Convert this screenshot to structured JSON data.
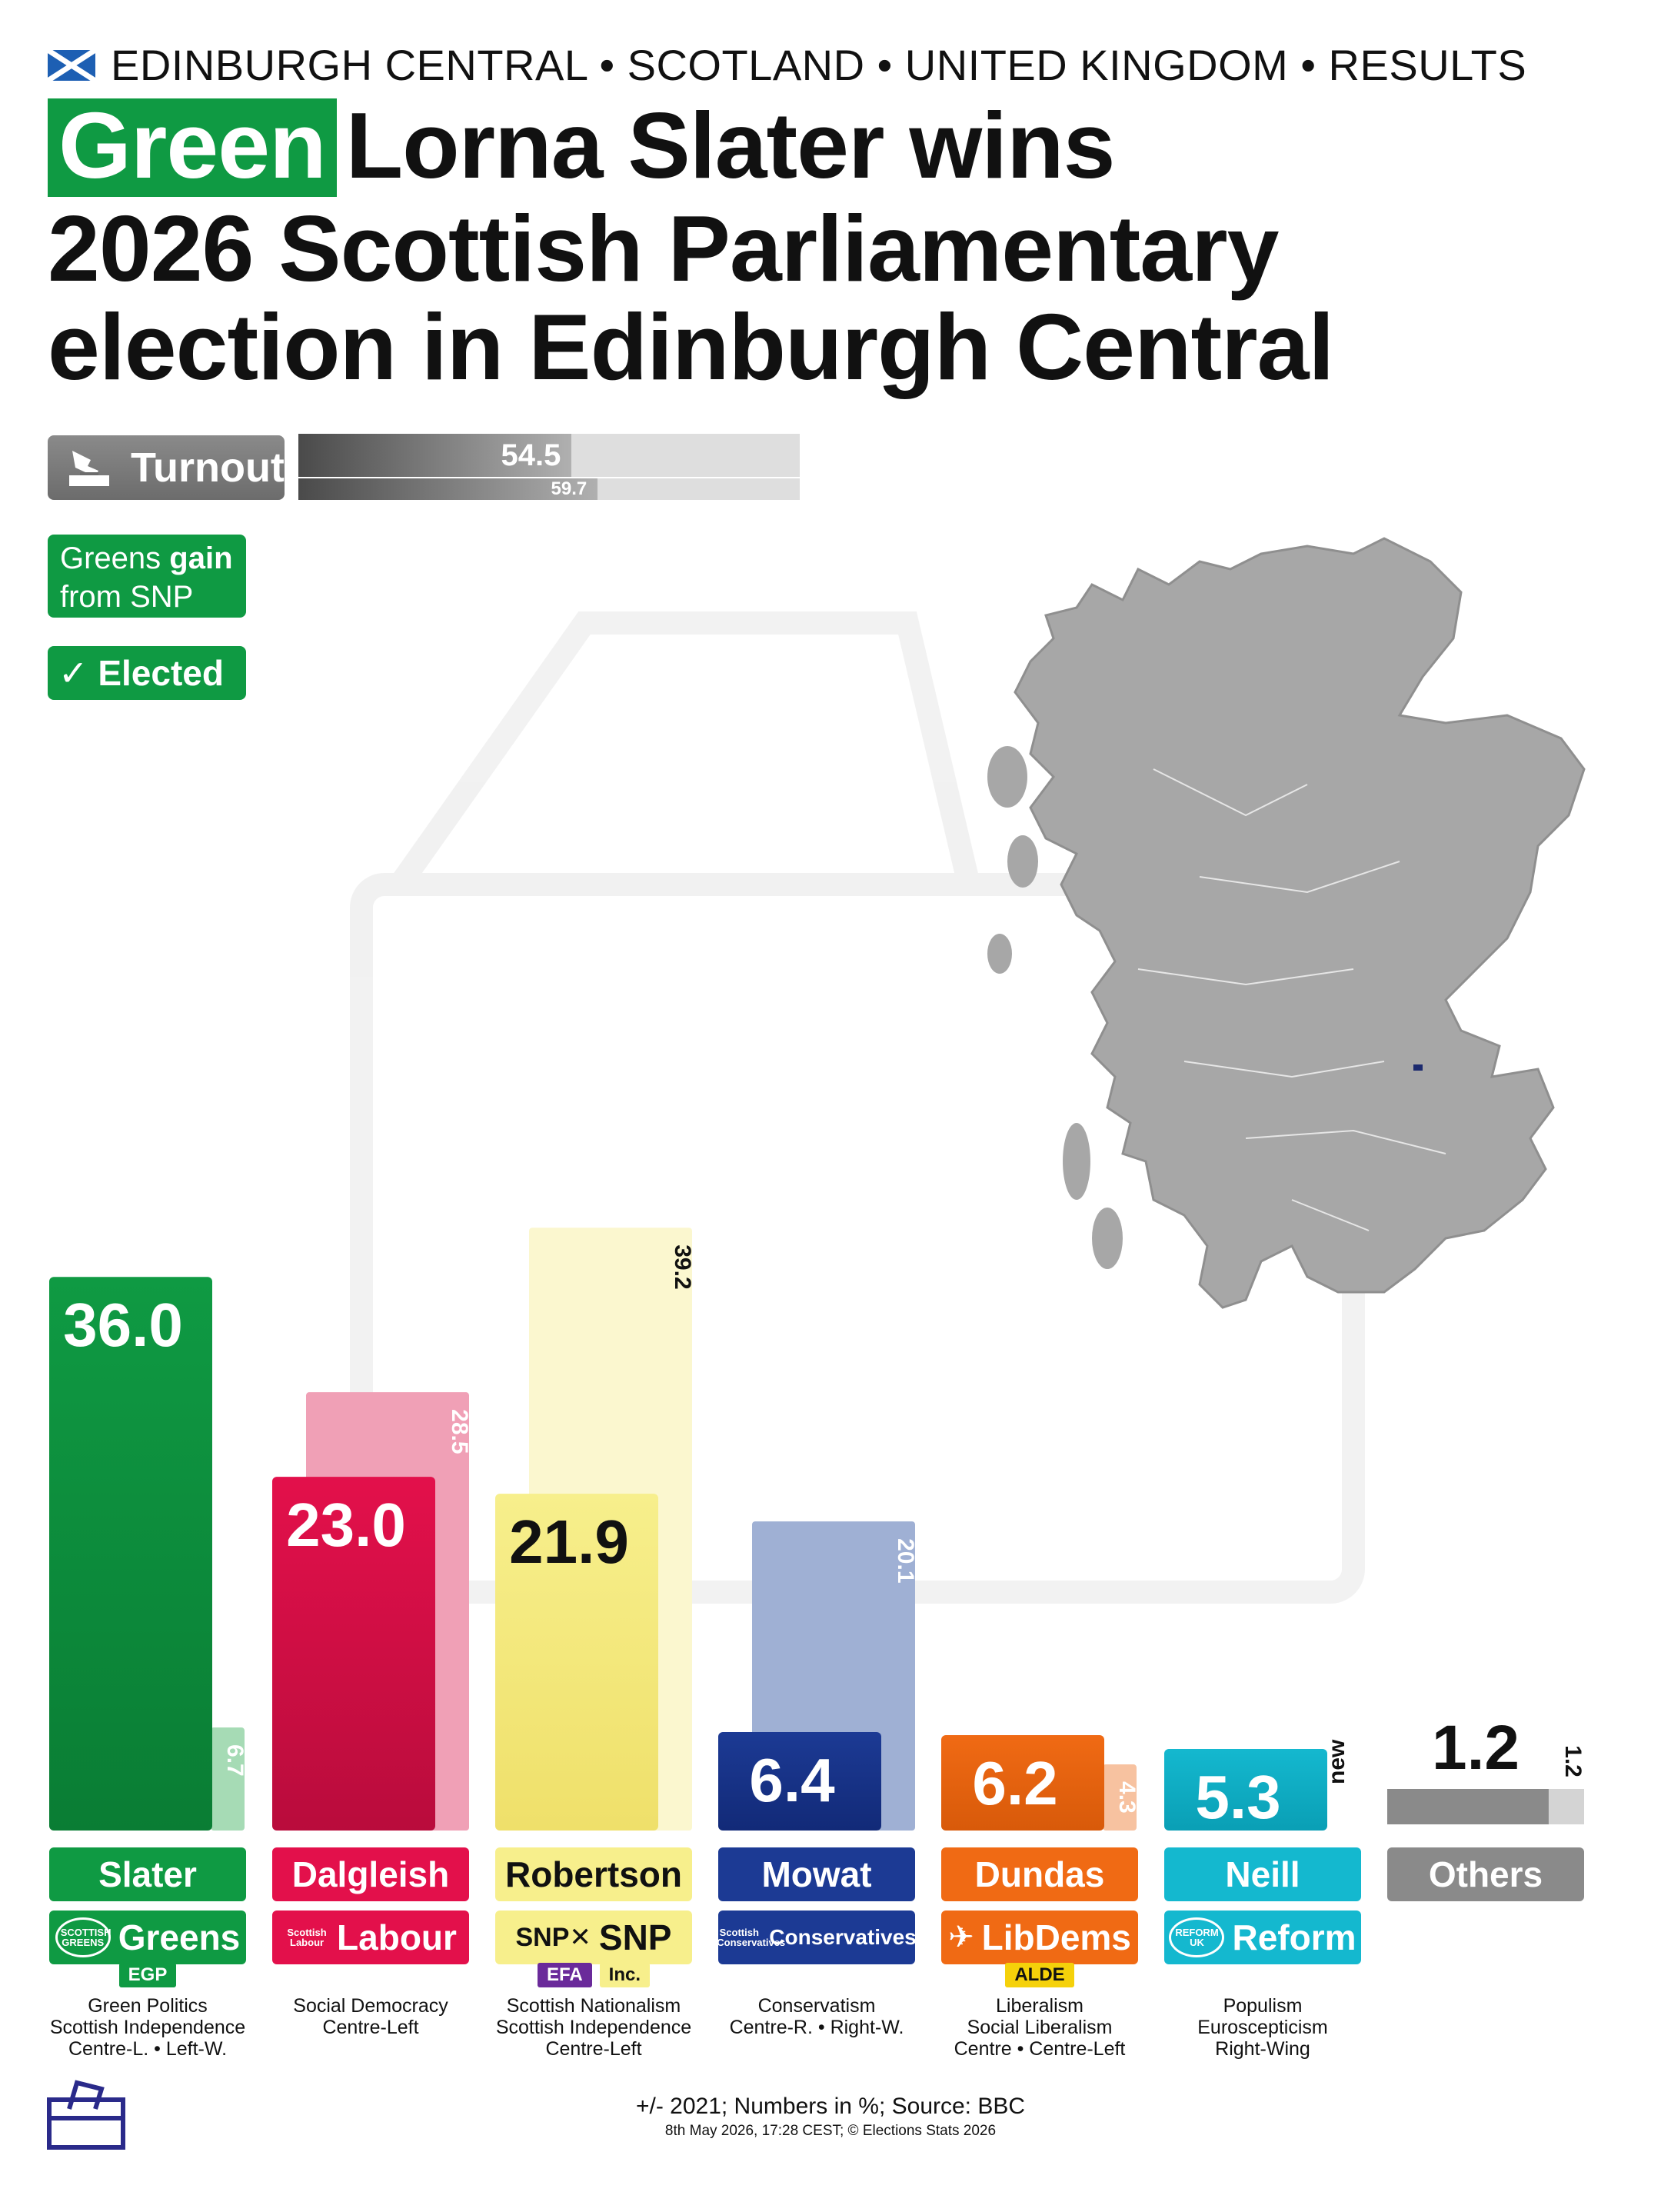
{
  "header": {
    "location": "EDINBURGH CENTRAL • SCOTLAND • UNITED KINGDOM • RESULTS",
    "flag_icon": "scotland-flag-icon"
  },
  "title": {
    "party_chip": "Green",
    "line1": "Lorna Slater wins",
    "line2": "2026 Scottish Parliamentary",
    "line3": "election in Edinburgh Central"
  },
  "turnout": {
    "label": "Turnout",
    "icon": "ballot-hand-icon",
    "current": "54.5",
    "previous": "59.7",
    "current_value": 54.5,
    "previous_value": 59.7
  },
  "badges": {
    "gain_line1_a": "Greens",
    "gain_line1_b": "gain",
    "gain_line2": "from SNP",
    "elected": "✓ Elected"
  },
  "chart_data": {
    "type": "bar",
    "unit": "%",
    "ylim": [
      0,
      40
    ],
    "categories": [
      "Slater",
      "Dalgleish",
      "Robertson",
      "Mowat",
      "Dundas",
      "Neill",
      "Others"
    ],
    "series": [
      {
        "values": [
          36.0,
          23.0,
          21.9,
          6.4,
          6.2,
          5.3,
          1.2
        ],
        "labels": [
          "36.0",
          "23.0",
          "21.9",
          "6.4",
          "6.2",
          "5.3",
          "1.2"
        ]
      },
      {
        "values": [
          6.7,
          28.5,
          39.2,
          20.1,
          4.3,
          null,
          1.2
        ],
        "labels": [
          "6.7",
          "28.5",
          "39.2",
          "20.1",
          "4.3",
          "new",
          "1.2"
        ]
      }
    ],
    "candidates": [
      {
        "name": "Slater",
        "party": "Greens",
        "logo": "SCOTTISH GREENS",
        "group": "EGP",
        "ideology": [
          "Green Politics",
          "Scottish Independence",
          "Centre-L. • Left-W."
        ],
        "color": "#0f9a43",
        "dark": "#0a7d34",
        "prev_color": "#a6dbb5",
        "text_dark": false
      },
      {
        "name": "Dalgleish",
        "party": "Labour",
        "logo": "Scottish Labour",
        "group": "",
        "ideology": [
          "Social Democracy",
          "Centre-Left"
        ],
        "color": "#e3104b",
        "dark": "#b90c3c",
        "prev_color": "#f0a0b6",
        "text_dark": false
      },
      {
        "name": "Robertson",
        "party": "SNP",
        "logo": "SNP",
        "group": "EFA",
        "group2": "Inc.",
        "ideology": [
          "Scottish Nationalism",
          "Scottish Independence",
          "Centre-Left"
        ],
        "color": "#f7ef8c",
        "dark": "#efe06a",
        "prev_color": "#fbf7cf",
        "text_dark": true
      },
      {
        "name": "Mowat",
        "party": "Conservatives",
        "logo": "Scottish Conservatives",
        "group": "",
        "ideology": [
          "Conservatism",
          "Centre-R. • Right-W."
        ],
        "color": "#1c3a94",
        "dark": "#122a78",
        "prev_color": "#9fb0d4",
        "text_dark": false
      },
      {
        "name": "Dundas",
        "party": "LibDems",
        "logo": "LibDems",
        "group": "ALDE",
        "ideology": [
          "Liberalism",
          "Social Liberalism",
          "Centre • Centre-Left"
        ],
        "color": "#f06a14",
        "dark": "#d85a0a",
        "prev_color": "#f7c2a0",
        "text_dark": false
      },
      {
        "name": "Neill",
        "party": "Reform",
        "logo": "REFORM UK",
        "group": "",
        "ideology": [
          "Populism",
          "Euroscepticism",
          "Right-Wing"
        ],
        "color": "#14b8cf",
        "dark": "#0a9fb5",
        "prev_color": "#9fe1ec",
        "text_dark": false
      },
      {
        "name": "Others",
        "party": "",
        "logo": "",
        "group": "",
        "ideology": [],
        "color": "#8a8a8a",
        "dark": "#6e6e6e",
        "prev_color": "#d4d4d4",
        "text_dark": false
      }
    ]
  },
  "map": {
    "icon": "scotland-constituency-map"
  },
  "footer": {
    "main": "+/- 2021; Numbers in %; Source: BBC",
    "sub": "8th May 2026, 17:28 CEST; © Elections Stats 2026",
    "icon": "ballot-box-icon"
  }
}
